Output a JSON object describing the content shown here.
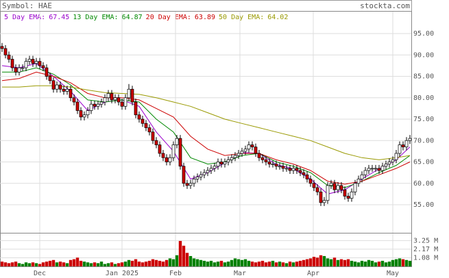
{
  "chart_data": {
    "type": "candlestick",
    "symbol_label": "Symbol: HAE",
    "site": "stockta.com",
    "xlim": [
      -0.6,
      119.4
    ],
    "xticks": [
      {
        "value": 11,
        "label": "Dec"
      },
      {
        "value": 35,
        "label": "Jan 2025"
      },
      {
        "value": 50.6,
        "label": "Feb"
      },
      {
        "value": 69.4,
        "label": "Mar"
      },
      {
        "value": 90.8,
        "label": "Apr"
      },
      {
        "value": 114,
        "label": "May"
      }
    ],
    "ylim": [
      48.44,
      100.12
    ],
    "yticks": [
      {
        "value": 55,
        "label": "55.00"
      },
      {
        "value": 60,
        "label": "60.00"
      },
      {
        "value": 65,
        "label": "65.00"
      },
      {
        "value": 70,
        "label": "70.00"
      },
      {
        "value": 75,
        "label": "75.00"
      },
      {
        "value": 80,
        "label": "80.00"
      },
      {
        "value": 85,
        "label": "85.00"
      },
      {
        "value": 90,
        "label": "90.00"
      },
      {
        "value": 95,
        "label": "95.00"
      }
    ],
    "grid": true,
    "up_color": "#ffffff",
    "down_color": "#cc0000",
    "open": [
      92,
      91.5,
      90,
      89,
      87,
      86,
      87,
      87,
      88.5,
      89,
      88,
      88.5,
      87.5,
      87,
      85,
      84,
      82,
      83,
      82,
      81.5,
      82,
      80,
      79,
      77,
      75.5,
      76,
      77,
      78.5,
      78,
      78.5,
      79,
      80,
      81,
      79.5,
      80,
      79,
      78,
      80,
      82,
      79,
      76,
      75,
      74,
      73,
      72,
      70,
      69,
      67,
      66,
      65,
      66,
      69,
      70.5,
      64,
      60,
      59.5,
      60,
      61,
      61.5,
      62,
      62.5,
      63,
      63.5,
      64,
      65,
      64.5,
      65,
      65.5,
      66,
      66.5,
      67,
      67.5,
      68,
      69,
      68.5,
      67,
      66,
      65.5,
      65,
      64.5,
      64.5,
      64,
      64,
      63.5,
      63.5,
      63,
      63.5,
      63,
      62.5,
      62,
      61,
      60,
      59,
      58,
      55.5,
      56,
      59.5,
      60,
      58.5,
      59.5,
      58.5,
      57,
      56.5,
      58,
      60,
      61,
      62,
      63,
      63.5,
      63.5,
      63.5,
      63,
      64,
      64.5,
      65,
      65.5,
      67,
      69,
      68.5,
      70
    ],
    "high": [
      92.8,
      92.3,
      90.8,
      89.8,
      87.8,
      87.8,
      87.8,
      89.3,
      89.8,
      89.8,
      89.3,
      89.3,
      88.3,
      87.8,
      85.8,
      84.8,
      83.8,
      83.8,
      82.8,
      82.8,
      82.8,
      80.8,
      79.8,
      77.8,
      76.8,
      77.8,
      79.3,
      79.3,
      79.3,
      79.8,
      80.8,
      81.8,
      81.8,
      80.8,
      80.8,
      79.8,
      80.8,
      83.2,
      82.8,
      79.8,
      76.8,
      75.8,
      74.8,
      73.8,
      72.8,
      70.8,
      69.8,
      67.8,
      66.8,
      66.8,
      69.8,
      71.3,
      71.3,
      64.8,
      60.8,
      60.8,
      61.8,
      62.3,
      62.8,
      63.3,
      63.8,
      64.3,
      64.8,
      65.8,
      65.8,
      65.8,
      66.3,
      66.8,
      67.3,
      67.8,
      68.3,
      68.8,
      69.8,
      69.8,
      69.3,
      67.8,
      66.8,
      66.3,
      65.8,
      65.3,
      65.3,
      64.8,
      64.8,
      64.3,
      64.3,
      64.3,
      64.3,
      63.8,
      63.3,
      62.8,
      61.8,
      60.8,
      59.8,
      58.8,
      56.8,
      60.3,
      60.8,
      60.8,
      60.3,
      60.3,
      59.3,
      57.8,
      58.8,
      60.8,
      61.8,
      62.8,
      63.8,
      64.3,
      64.3,
      64.3,
      64.3,
      64.8,
      65.3,
      65.8,
      66.3,
      67.8,
      69.8,
      69.8,
      70.8,
      71.3
    ],
    "low": [
      90.7,
      89.2,
      88.2,
      86.2,
      85.2,
      85.2,
      86.2,
      86.2,
      87.7,
      87.2,
      87.2,
      86.7,
      86.2,
      84.2,
      83.2,
      81.2,
      81.2,
      81.2,
      80.7,
      80.7,
      79.2,
      78.2,
      76.2,
      74.7,
      74.7,
      75.2,
      76.2,
      77.2,
      77.2,
      77.7,
      78.2,
      79.2,
      78.7,
      78.7,
      78.2,
      77.2,
      77.2,
      79.2,
      78.2,
      75.2,
      74.2,
      73.2,
      72.2,
      71.2,
      69.2,
      68.2,
      66.2,
      65.2,
      64.2,
      64.2,
      65.2,
      68.2,
      63.2,
      59.2,
      58.7,
      58.7,
      59.2,
      60.2,
      60.7,
      61.2,
      61.7,
      62.2,
      62.7,
      63.2,
      63.7,
      63.7,
      64.2,
      64.7,
      65.2,
      65.7,
      66.2,
      66.7,
      67.2,
      67.7,
      66.2,
      65.2,
      64.7,
      64.2,
      63.7,
      63.7,
      63.2,
      63.2,
      62.7,
      62.7,
      62.2,
      62.2,
      62.2,
      61.7,
      61.2,
      60.2,
      59.2,
      58.2,
      57.2,
      54.7,
      54.7,
      55.2,
      58.7,
      57.7,
      57.7,
      57.7,
      56.2,
      55.7,
      55.7,
      57.2,
      59.2,
      60.2,
      61.2,
      62.2,
      62.7,
      62.7,
      62.2,
      62.2,
      63.2,
      63.7,
      64.2,
      64.7,
      66.2,
      67.7,
      67.7,
      69.2
    ],
    "close": [
      91.5,
      90,
      89,
      87,
      86,
      87,
      87,
      88.5,
      89,
      88,
      88.5,
      87.5,
      87,
      85,
      84,
      82,
      83,
      82,
      81.5,
      82,
      80,
      79,
      77,
      75.5,
      76,
      77,
      78.5,
      78,
      78.5,
      79,
      80,
      81,
      79.5,
      80,
      79,
      78,
      80,
      82,
      79,
      76,
      75,
      74,
      73,
      72,
      70,
      69,
      67,
      66,
      65,
      66,
      69,
      70.5,
      64,
      60,
      59.5,
      60,
      61,
      61.5,
      62,
      62.5,
      63,
      63.5,
      64,
      65,
      64.5,
      65,
      65.5,
      66,
      66.5,
      67,
      67.5,
      68,
      69,
      68.5,
      67,
      66,
      65.5,
      65,
      64.5,
      64.5,
      64,
      64,
      63.5,
      63.5,
      63,
      63.5,
      63,
      62.5,
      62,
      61,
      60,
      59,
      58,
      55.5,
      56,
      59.5,
      60,
      58.5,
      59.5,
      58.5,
      57,
      56.5,
      58,
      60,
      61,
      62,
      63,
      63.5,
      63.5,
      63.5,
      63,
      64,
      64.5,
      65,
      65.5,
      67,
      69,
      68.5,
      70,
      70.5
    ],
    "series": [
      {
        "name": "5 Day EMA:",
        "last": 67.45,
        "color": "#9900cc",
        "x": [
          0,
          5,
          10,
          15,
          20,
          25,
          30,
          35,
          40,
          45,
          50,
          55,
          60,
          65,
          70,
          75,
          80,
          85,
          90,
          95,
          100,
          105,
          110,
          115,
          119
        ],
        "values": [
          87.5,
          87,
          88,
          85,
          81.5,
          77,
          79,
          79.5,
          78,
          72,
          67.5,
          61,
          62.5,
          64.8,
          67.2,
          67,
          64.4,
          63.4,
          61,
          57.5,
          58.5,
          61,
          63.4,
          65.5,
          68.5
        ]
      },
      {
        "name": "13 Day EMA:",
        "last": 64.87,
        "color": "#008800",
        "x": [
          0,
          5,
          10,
          15,
          20,
          25,
          30,
          35,
          40,
          45,
          50,
          55,
          60,
          65,
          70,
          75,
          80,
          85,
          90,
          95,
          100,
          105,
          110,
          115,
          119
        ],
        "values": [
          86,
          86,
          87,
          85.5,
          83,
          79.5,
          79,
          79.5,
          79,
          75,
          72,
          66,
          64.5,
          65,
          66.5,
          67,
          65,
          64,
          62.5,
          59.5,
          59,
          60.5,
          62.5,
          64.2,
          66.5
        ]
      },
      {
        "name": "20 Day EMA:",
        "last": 63.89,
        "color": "#cc0000",
        "x": [
          0,
          5,
          10,
          15,
          20,
          25,
          30,
          35,
          40,
          45,
          50,
          55,
          60,
          65,
          70,
          75,
          80,
          85,
          90,
          95,
          100,
          105,
          110,
          115,
          119
        ],
        "values": [
          84,
          84.5,
          86,
          85,
          83.5,
          81,
          80,
          80,
          79.5,
          77.5,
          75.5,
          71,
          68,
          66.5,
          67,
          67,
          65.5,
          64.5,
          63,
          60.5,
          59.8,
          60.5,
          62,
          63.5,
          65
        ]
      },
      {
        "name": "50 Day EMA:",
        "last": 64.02,
        "color": "#999900",
        "x": [
          0,
          5,
          10,
          15,
          20,
          25,
          30,
          35,
          40,
          45,
          50,
          55,
          60,
          65,
          70,
          75,
          80,
          85,
          90,
          95,
          100,
          105,
          110,
          115,
          119
        ],
        "values": [
          82.5,
          82.5,
          82.8,
          82.8,
          82.5,
          81.8,
          81.2,
          81,
          80.8,
          80,
          79,
          78,
          76.5,
          75,
          74,
          73,
          72,
          71,
          70,
          68.5,
          67,
          66,
          65.5,
          66,
          66.5
        ]
      }
    ],
    "volume": {
      "ylim": [
        0,
        4.14
      ],
      "yticks": [
        {
          "value": 1.08,
          "label": "1.08 M"
        },
        {
          "value": 2.17,
          "label": "2.17 M"
        },
        {
          "value": 3.25,
          "label": "3.25 M"
        }
      ],
      "up_color": "#008000",
      "down_color": "#cc0000",
      "values": [
        0.6,
        0.5,
        0.4,
        0.5,
        0.6,
        0.4,
        0.3,
        0.5,
        0.4,
        0.5,
        0.4,
        0.3,
        0.5,
        0.6,
        0.7,
        0.8,
        0.5,
        0.6,
        0.5,
        0.4,
        0.8,
        0.9,
        1.1,
        0.7,
        0.6,
        0.5,
        0.4,
        0.5,
        0.4,
        0.6,
        0.3,
        0.4,
        0.5,
        0.3,
        0.4,
        0.5,
        0.6,
        0.8,
        0.7,
        0.9,
        0.6,
        0.5,
        0.6,
        0.7,
        0.9,
        0.8,
        0.7,
        0.6,
        0.8,
        1.0,
        0.9,
        1.4,
        3.2,
        2.6,
        1.7,
        1.3,
        1.0,
        0.9,
        0.8,
        0.7,
        0.6,
        0.7,
        0.5,
        0.6,
        0.7,
        0.5,
        0.6,
        0.8,
        1.0,
        0.9,
        0.8,
        0.9,
        0.7,
        0.6,
        0.5,
        0.6,
        0.7,
        0.5,
        0.6,
        0.7,
        0.5,
        0.6,
        0.5,
        0.4,
        0.6,
        0.5,
        0.6,
        0.7,
        0.8,
        0.9,
        1.0,
        1.2,
        1.1,
        1.4,
        1.3,
        1.0,
        0.9,
        1.1,
        0.8,
        0.9,
        0.8,
        0.9,
        0.7,
        0.6,
        0.5,
        0.7,
        0.6,
        0.8,
        0.7,
        0.5,
        0.6,
        0.7,
        0.5,
        0.6,
        0.8,
        0.9,
        1.0,
        0.9,
        0.8,
        0.7
      ]
    }
  }
}
